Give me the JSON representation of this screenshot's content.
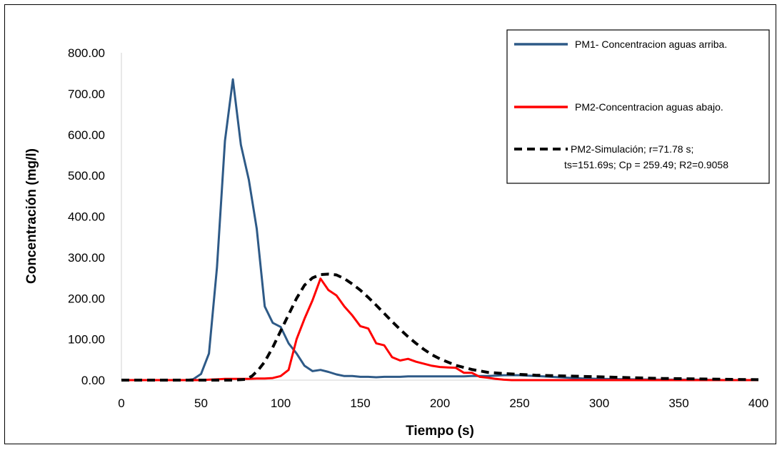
{
  "chart_data": {
    "type": "line",
    "title": "",
    "xlabel": "Tiempo (s)",
    "ylabel": "Concentración (mg/l)",
    "xlim": [
      0,
      400
    ],
    "ylim": [
      0,
      800
    ],
    "xticks": [
      0,
      50,
      100,
      150,
      200,
      250,
      300,
      350,
      400
    ],
    "xtick_labels": [
      "0",
      "50",
      "100",
      "150",
      "200",
      "250",
      "300",
      "350",
      "400"
    ],
    "yticks": [
      0,
      100,
      200,
      300,
      400,
      500,
      600,
      700,
      800
    ],
    "ytick_labels": [
      "0.00",
      "100.00",
      "200.00",
      "300.00",
      "400.00",
      "500.00",
      "600.00",
      "700.00",
      "800.00"
    ],
    "grid": false,
    "legend_position": "top-right",
    "series": [
      {
        "name": "PM1- Concentracion aguas arriba.",
        "color": "#2E5A87",
        "dash": "solid",
        "x": [
          0,
          5,
          10,
          15,
          20,
          25,
          30,
          35,
          40,
          45,
          50,
          55,
          60,
          65,
          70,
          75,
          80,
          85,
          90,
          95,
          100,
          105,
          110,
          115,
          120,
          125,
          130,
          135,
          140,
          145,
          150,
          155,
          160,
          165,
          170,
          175,
          180,
          185,
          190,
          195,
          200,
          205,
          210,
          215,
          220,
          225,
          230,
          235,
          240,
          245,
          250,
          255,
          260,
          265,
          270,
          280,
          290,
          300,
          320,
          340,
          360,
          380,
          400
        ],
        "y": [
          0,
          0,
          0,
          0,
          0,
          0,
          0,
          0,
          0,
          2,
          15,
          65,
          275,
          585,
          735,
          575,
          490,
          370,
          180,
          140,
          130,
          90,
          65,
          35,
          22,
          25,
          20,
          14,
          10,
          10,
          8,
          8,
          7,
          8,
          8,
          8,
          9,
          9,
          9,
          9,
          9,
          9,
          9,
          9,
          10,
          10,
          10,
          11,
          12,
          12,
          12,
          11,
          10,
          9,
          8,
          6,
          4,
          3,
          2,
          1,
          1,
          0,
          0
        ]
      },
      {
        "name": "PM2-Concentracion aguas abajo.",
        "color": "#FF0000",
        "dash": "solid",
        "x": [
          0,
          10,
          20,
          30,
          40,
          50,
          55,
          60,
          65,
          70,
          75,
          80,
          85,
          90,
          95,
          100,
          105,
          110,
          115,
          120,
          125,
          130,
          135,
          140,
          145,
          150,
          155,
          160,
          165,
          170,
          175,
          180,
          185,
          190,
          195,
          200,
          205,
          210,
          215,
          220,
          225,
          230,
          235,
          240,
          245,
          250,
          260,
          270,
          280,
          300,
          320,
          340,
          360,
          380,
          400
        ],
        "y": [
          0,
          0,
          0,
          0,
          0,
          0,
          1,
          2,
          3,
          3,
          3,
          3,
          4,
          4,
          5,
          10,
          25,
          100,
          150,
          195,
          248,
          220,
          207,
          180,
          158,
          132,
          126,
          90,
          85,
          56,
          48,
          52,
          45,
          40,
          35,
          32,
          31,
          30,
          18,
          18,
          8,
          6,
          3,
          1,
          0,
          0,
          0,
          0,
          0,
          0,
          0,
          0,
          0,
          0,
          0
        ]
      },
      {
        "name": "PM2-Simulación;   r=71.78 s; ts=151.69s;  Cp = 259.49; R2=0.9058",
        "color": "#000000",
        "dash": "dashed",
        "x": [
          0,
          20,
          40,
          60,
          70,
          78,
          82,
          86,
          90,
          95,
          100,
          105,
          110,
          115,
          120,
          125,
          130,
          135,
          140,
          145,
          150,
          155,
          160,
          165,
          170,
          175,
          180,
          185,
          190,
          195,
          200,
          210,
          220,
          230,
          240,
          250,
          260,
          270,
          280,
          290,
          300,
          320,
          340,
          360,
          380,
          400
        ],
        "y": [
          0,
          0,
          0,
          0,
          0,
          2,
          10,
          25,
          45,
          80,
          120,
          160,
          200,
          232,
          250,
          258,
          259,
          257,
          248,
          235,
          220,
          202,
          183,
          163,
          143,
          124,
          106,
          90,
          75,
          62,
          52,
          36,
          26,
          19,
          16,
          14,
          12,
          11,
          10,
          9,
          8,
          6,
          4,
          3,
          2,
          1
        ]
      }
    ]
  },
  "legend": {
    "entries": [
      {
        "line1": "PM1- Concentracion aguas arriba.",
        "line2": ""
      },
      {
        "line1": "PM2-Concentracion aguas abajo.",
        "line2": ""
      },
      {
        "line1": "PM2-Simulación;   r=71.78 s;",
        "line2": "ts=151.69s;  Cp = 259.49; R2=0.9058"
      }
    ]
  }
}
